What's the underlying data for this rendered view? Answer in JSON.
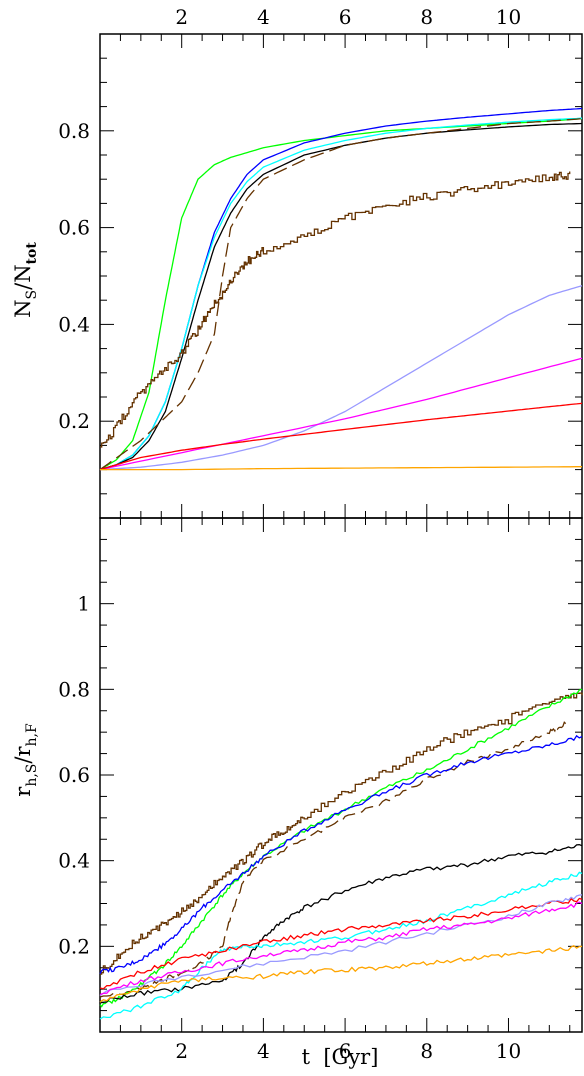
{
  "chart_data": [
    {
      "type": "line",
      "ylabel_main": "N",
      "ylabel_sub1": "S",
      "ylabel_mid": "/N",
      "ylabel_sub2": "tot",
      "xlim": [
        0,
        11.8
      ],
      "ylim": [
        0,
        1.0
      ],
      "x_ticks_top": [
        "2",
        "4",
        "6",
        "8",
        "10"
      ],
      "y_ticks": [
        "0.2",
        "0.4",
        "0.6",
        "0.8"
      ],
      "series": [
        {
          "color": "#00ff00",
          "x": [
            0,
            0.4,
            0.8,
            1.2,
            1.6,
            2.0,
            2.4,
            2.8,
            3.2,
            4,
            5,
            6,
            7,
            8,
            9,
            10,
            11,
            11.8
          ],
          "y": [
            0.1,
            0.12,
            0.16,
            0.26,
            0.45,
            0.62,
            0.7,
            0.73,
            0.745,
            0.765,
            0.78,
            0.79,
            0.8,
            0.805,
            0.81,
            0.815,
            0.82,
            0.825
          ]
        },
        {
          "color": "#0000ff",
          "x": [
            0,
            0.4,
            0.8,
            1.2,
            1.6,
            2.0,
            2.4,
            2.8,
            3.2,
            3.6,
            4,
            5,
            6,
            7,
            8,
            9,
            10,
            11,
            11.8
          ],
          "y": [
            0.1,
            0.11,
            0.13,
            0.17,
            0.24,
            0.35,
            0.48,
            0.59,
            0.66,
            0.71,
            0.74,
            0.775,
            0.795,
            0.81,
            0.82,
            0.828,
            0.835,
            0.842,
            0.846
          ]
        },
        {
          "color": "#00ffff",
          "x": [
            0,
            0.4,
            0.8,
            1.2,
            1.6,
            2.0,
            2.4,
            2.8,
            3.2,
            3.6,
            4,
            5,
            6,
            7,
            8,
            9,
            10,
            11,
            11.8
          ],
          "y": [
            0.1,
            0.11,
            0.13,
            0.17,
            0.24,
            0.35,
            0.48,
            0.58,
            0.65,
            0.695,
            0.725,
            0.76,
            0.78,
            0.795,
            0.805,
            0.812,
            0.818,
            0.823,
            0.826
          ]
        },
        {
          "color": "#000000",
          "x": [
            0,
            0.4,
            0.8,
            1.2,
            1.6,
            2.0,
            2.4,
            2.8,
            3.2,
            3.6,
            4,
            5,
            6,
            7,
            8,
            9,
            10,
            11,
            11.8
          ],
          "y": [
            0.1,
            0.11,
            0.125,
            0.16,
            0.22,
            0.33,
            0.45,
            0.56,
            0.63,
            0.68,
            0.71,
            0.75,
            0.77,
            0.785,
            0.795,
            0.802,
            0.808,
            0.813,
            0.815
          ]
        },
        {
          "color": "#643200",
          "dash": true,
          "x": [
            0,
            0.5,
            1.0,
            1.5,
            2.0,
            2.4,
            2.8,
            3.0,
            3.2,
            3.6,
            4,
            5,
            6,
            7,
            8,
            9,
            10,
            11,
            11.8
          ],
          "y": [
            0.1,
            0.13,
            0.16,
            0.2,
            0.24,
            0.3,
            0.38,
            0.5,
            0.6,
            0.66,
            0.7,
            0.74,
            0.77,
            0.785,
            0.795,
            0.805,
            0.815,
            0.82,
            0.825
          ]
        },
        {
          "color": "#643200",
          "step": true,
          "x": [
            0,
            0.5,
            1.0,
            1.5,
            2.0,
            2.4,
            2.8,
            3.2,
            3.6,
            4,
            5,
            6,
            7,
            8,
            9,
            10,
            11,
            11.5
          ],
          "y": [
            0.14,
            0.2,
            0.26,
            0.3,
            0.34,
            0.39,
            0.44,
            0.49,
            0.53,
            0.55,
            0.58,
            0.62,
            0.645,
            0.665,
            0.68,
            0.69,
            0.705,
            0.71
          ]
        },
        {
          "color": "#9999ff",
          "x": [
            0,
            1,
            2,
            3,
            4,
            5,
            6,
            7,
            8,
            9,
            10,
            11,
            11.8
          ],
          "y": [
            0.1,
            0.105,
            0.115,
            0.13,
            0.15,
            0.18,
            0.22,
            0.27,
            0.32,
            0.37,
            0.42,
            0.46,
            0.48
          ]
        },
        {
          "color": "#ff00ff",
          "x": [
            0,
            2,
            4,
            6,
            8,
            10,
            11.8
          ],
          "y": [
            0.1,
            0.135,
            0.17,
            0.205,
            0.245,
            0.29,
            0.33
          ]
        },
        {
          "color": "#ff0000",
          "x": [
            0,
            1,
            2,
            3,
            4,
            5,
            6,
            7,
            8,
            9,
            10,
            11,
            11.8
          ],
          "y": [
            0.1,
            0.125,
            0.14,
            0.152,
            0.163,
            0.173,
            0.183,
            0.193,
            0.203,
            0.212,
            0.221,
            0.23,
            0.237
          ]
        },
        {
          "color": "#ffa500",
          "x": [
            0,
            2,
            4,
            6,
            8,
            10,
            11.8
          ],
          "y": [
            0.1,
            0.1,
            0.102,
            0.103,
            0.104,
            0.105,
            0.106
          ]
        }
      ]
    },
    {
      "type": "line",
      "xlabel": "t  [Gyr]",
      "ylabel_main": "r",
      "ylabel_sub1": "h,S",
      "ylabel_mid": "/r",
      "ylabel_sub2": "h,F",
      "xlim": [
        0,
        11.8
      ],
      "ylim": [
        0,
        1.2
      ],
      "x_ticks_bottom": [
        "2",
        "4",
        "6",
        "8",
        "10"
      ],
      "y_ticks": [
        "0.2",
        "0.4",
        "0.6",
        "0.8",
        "1"
      ],
      "series": [
        {
          "color": "#643200",
          "step": true,
          "x": [
            0,
            0.5,
            1,
            1.5,
            2,
            2.5,
            3,
            3.5,
            4,
            4.5,
            5,
            6,
            7,
            8,
            9,
            10,
            11,
            11.8
          ],
          "y": [
            0.14,
            0.18,
            0.22,
            0.25,
            0.28,
            0.32,
            0.36,
            0.4,
            0.44,
            0.47,
            0.5,
            0.56,
            0.61,
            0.66,
            0.7,
            0.73,
            0.77,
            0.79
          ]
        },
        {
          "color": "#643200",
          "dash": true,
          "x": [
            0,
            1,
            1.5,
            2,
            2.5,
            3,
            3.2,
            3.5,
            4,
            5,
            6,
            7,
            8,
            9,
            10,
            11,
            11.4
          ],
          "y": [
            0.08,
            0.1,
            0.12,
            0.14,
            0.16,
            0.2,
            0.27,
            0.35,
            0.4,
            0.45,
            0.5,
            0.54,
            0.59,
            0.63,
            0.66,
            0.7,
            0.72
          ]
        },
        {
          "color": "#00ff00",
          "x": [
            0,
            0.5,
            1,
            1.5,
            2,
            2.5,
            3,
            3.5,
            4,
            5,
            6,
            7,
            8,
            9,
            10,
            11,
            11.8
          ],
          "y": [
            0.06,
            0.08,
            0.11,
            0.15,
            0.2,
            0.26,
            0.32,
            0.37,
            0.41,
            0.47,
            0.52,
            0.57,
            0.61,
            0.66,
            0.71,
            0.76,
            0.8
          ]
        },
        {
          "color": "#0000ff",
          "x": [
            0,
            0.5,
            1,
            1.5,
            2,
            2.5,
            3,
            3.5,
            4,
            5,
            6,
            7,
            8,
            9,
            10,
            11,
            11.8
          ],
          "y": [
            0.14,
            0.15,
            0.17,
            0.2,
            0.24,
            0.29,
            0.33,
            0.37,
            0.41,
            0.47,
            0.52,
            0.56,
            0.6,
            0.63,
            0.65,
            0.67,
            0.69
          ]
        },
        {
          "color": "#000000",
          "x": [
            0,
            1,
            2,
            3,
            3.5,
            4,
            4.5,
            5,
            6,
            7,
            8,
            9,
            10,
            11,
            11.8
          ],
          "y": [
            0.07,
            0.09,
            0.1,
            0.12,
            0.16,
            0.22,
            0.26,
            0.29,
            0.33,
            0.36,
            0.38,
            0.39,
            0.41,
            0.42,
            0.435
          ]
        },
        {
          "color": "#00ffff",
          "x": [
            0,
            1,
            2,
            2.5,
            3,
            3.5,
            4,
            5,
            6,
            7,
            8,
            9,
            10,
            11,
            11.8
          ],
          "y": [
            0.03,
            0.06,
            0.1,
            0.15,
            0.19,
            0.2,
            0.2,
            0.21,
            0.22,
            0.24,
            0.26,
            0.29,
            0.32,
            0.35,
            0.37
          ]
        },
        {
          "color": "#ff0000",
          "x": [
            0,
            1,
            2,
            3,
            4,
            5,
            6,
            7,
            8,
            9,
            10,
            11,
            11.8
          ],
          "y": [
            0.1,
            0.14,
            0.17,
            0.19,
            0.21,
            0.225,
            0.24,
            0.25,
            0.26,
            0.27,
            0.285,
            0.3,
            0.31
          ]
        },
        {
          "color": "#9999ff",
          "x": [
            0,
            2,
            4,
            6,
            8,
            10,
            11,
            11.8
          ],
          "y": [
            0.09,
            0.13,
            0.16,
            0.19,
            0.23,
            0.27,
            0.3,
            0.32
          ]
        },
        {
          "color": "#ff00ff",
          "x": [
            0,
            1,
            2,
            3,
            4,
            5,
            6,
            7,
            8,
            9,
            10,
            11,
            11.8
          ],
          "y": [
            0.09,
            0.12,
            0.14,
            0.16,
            0.18,
            0.19,
            0.21,
            0.22,
            0.24,
            0.25,
            0.265,
            0.285,
            0.3
          ]
        },
        {
          "color": "#ffa500",
          "x": [
            0,
            1,
            2,
            3,
            4,
            5,
            6,
            7,
            8,
            9,
            10,
            11,
            11.8
          ],
          "y": [
            0.07,
            0.1,
            0.12,
            0.125,
            0.13,
            0.14,
            0.145,
            0.15,
            0.16,
            0.17,
            0.18,
            0.19,
            0.2
          ]
        }
      ]
    }
  ]
}
